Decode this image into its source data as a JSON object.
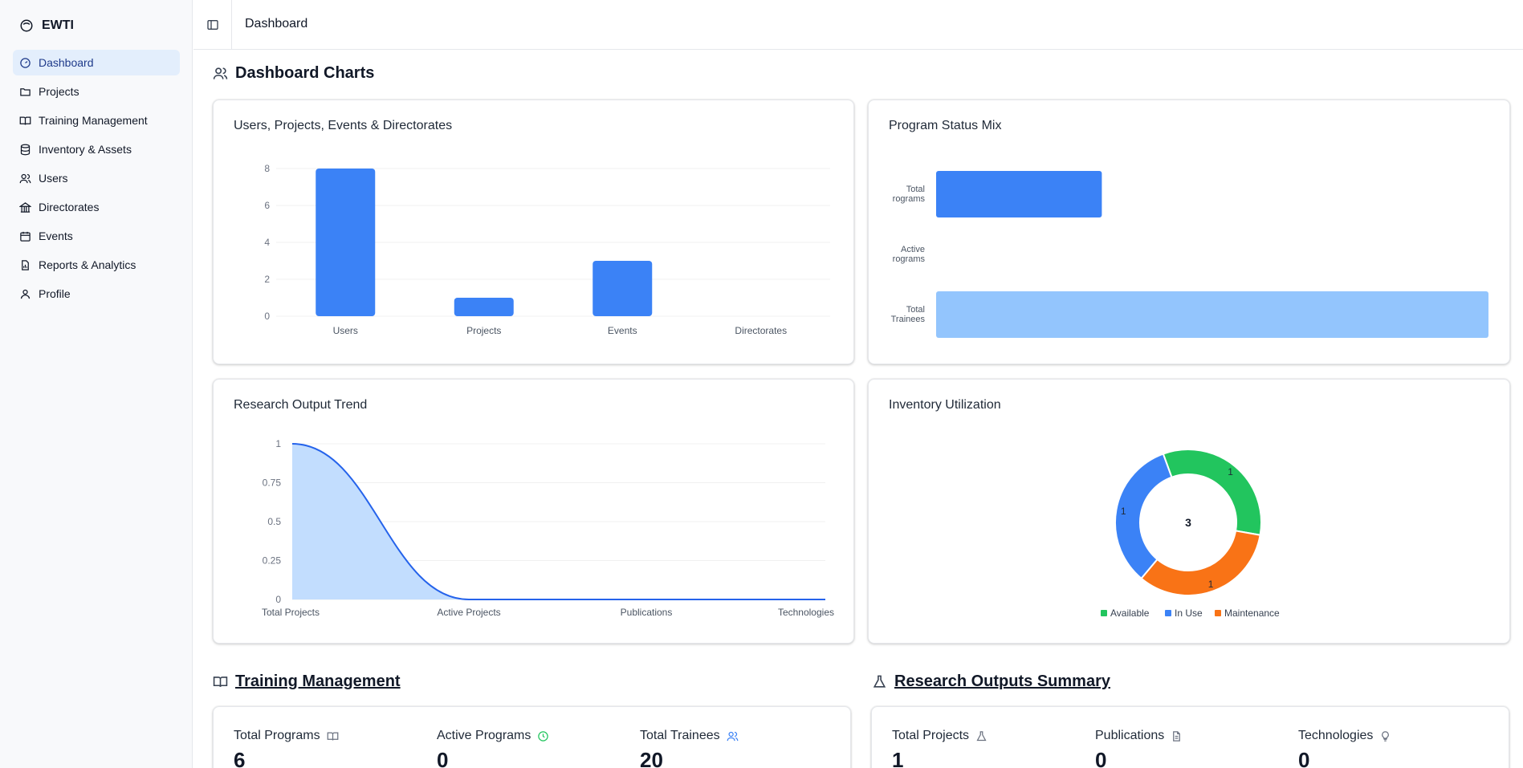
{
  "app": {
    "name": "EWTI"
  },
  "sidebar": {
    "items": [
      {
        "label": "Dashboard",
        "icon": "gauge-icon"
      },
      {
        "label": "Projects",
        "icon": "folder-icon"
      },
      {
        "label": "Training Management",
        "icon": "book-open-icon"
      },
      {
        "label": "Inventory & Assets",
        "icon": "database-icon"
      },
      {
        "label": "Users",
        "icon": "users-icon"
      },
      {
        "label": "Directorates",
        "icon": "landmark-icon"
      },
      {
        "label": "Events",
        "icon": "calendar-icon"
      },
      {
        "label": "Reports & Analytics",
        "icon": "file-chart-icon"
      },
      {
        "label": "Profile",
        "icon": "user-icon"
      }
    ],
    "active": "Dashboard"
  },
  "header": {
    "breadcrumb": "Dashboard"
  },
  "sections": {
    "charts_title": "Dashboard Charts",
    "training_title": "Training Management",
    "research_title": "Research Outputs Summary"
  },
  "charts": {
    "users_projects": {
      "title": "Users, Projects, Events & Directorates"
    },
    "program_status": {
      "title": "Program Status Mix"
    },
    "research_trend": {
      "title": "Research Output Trend"
    },
    "inventory": {
      "title": "Inventory Utilization"
    }
  },
  "chart_data": [
    {
      "type": "bar",
      "title": "Users, Projects, Events & Directorates",
      "categories": [
        "Users",
        "Projects",
        "Events",
        "Directorates"
      ],
      "values": [
        8,
        1,
        3,
        0
      ],
      "ylim": [
        0,
        8
      ],
      "yticks": [
        0,
        2,
        4,
        6,
        8
      ],
      "grid": true,
      "colors": [
        "#3b82f6"
      ]
    },
    {
      "type": "bar",
      "orientation": "horizontal",
      "title": "Program Status Mix",
      "categories": [
        [
          "Total",
          "rograms"
        ],
        [
          "Active",
          "rograms"
        ],
        [
          "Total",
          "Trainees"
        ]
      ],
      "values": [
        6,
        0,
        20
      ],
      "xlim": [
        0,
        20
      ],
      "colors": [
        "#3b82f6",
        "#3b82f6",
        "#93c5fd"
      ]
    },
    {
      "type": "area",
      "title": "Research Output Trend",
      "categories": [
        "Total Projects",
        "Active Projects",
        "Publications",
        "Technologies"
      ],
      "values": [
        1,
        0,
        0,
        0
      ],
      "ylim": [
        0,
        1
      ],
      "yticks": [
        0,
        0.25,
        0.5,
        0.75,
        1
      ],
      "yticklabels": [
        "0",
        "0.25",
        "0.5",
        "0.75",
        "1"
      ],
      "grid": true,
      "colors": [
        "#2563eb",
        "#bfdbfe"
      ]
    },
    {
      "type": "pie",
      "donut": true,
      "title": "Inventory Utilization",
      "center_label": "3",
      "slices": [
        {
          "label": "Available",
          "value": 1,
          "color": "#22c55e"
        },
        {
          "label": "Maintenance",
          "value": 1,
          "color": "#f97316"
        },
        {
          "label": "In Use",
          "value": 1,
          "color": "#3b82f6"
        }
      ],
      "legend": [
        "Available",
        "In Use",
        "Maintenance"
      ],
      "legend_colors": [
        "#22c55e",
        "#3b82f6",
        "#f97316"
      ],
      "legend_position": "bottom"
    }
  ],
  "training_stats": [
    {
      "label": "Total Programs",
      "value": "6",
      "icon": "book-open-icon",
      "icon_color": "#6b7280"
    },
    {
      "label": "Active Programs",
      "value": "0",
      "icon": "clock-icon",
      "icon_color": "#22c55e"
    },
    {
      "label": "Total Trainees",
      "value": "20",
      "icon": "users-icon",
      "icon_color": "#3b82f6"
    }
  ],
  "research_stats": [
    {
      "label": "Total Projects",
      "value": "1",
      "icon": "flask-icon",
      "icon_color": "#6b7280"
    },
    {
      "label": "Publications",
      "value": "0",
      "icon": "file-text-icon",
      "icon_color": "#6b7280"
    },
    {
      "label": "Technologies",
      "value": "0",
      "icon": "lightbulb-icon",
      "icon_color": "#6b7280"
    }
  ]
}
